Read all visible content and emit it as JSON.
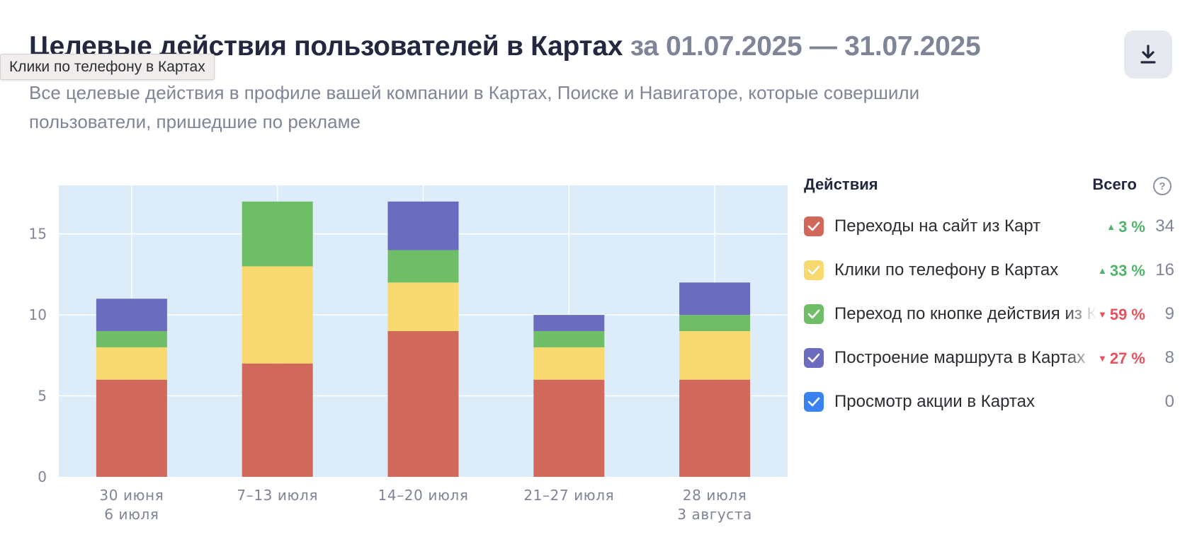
{
  "header": {
    "title": "Целевые действия пользователей в Картах",
    "period": "за 01.07.2025 — 31.07.2025",
    "subtitle": "Все целевые действия в профиле вашей компании в Картах, Поиске и Навигаторе, которые совершили пользователи, пришедшие по рекламе",
    "download_icon": "download-icon"
  },
  "tooltip": {
    "text": "Клики по телефону в Картах"
  },
  "legend": {
    "col_actions": "Действия",
    "col_total": "Всего",
    "help_icon": "?",
    "rows": [
      {
        "label": "Переходы на сайт из Карт",
        "color": "#d0695c",
        "change": "3 %",
        "direction": "up",
        "arrow": "▲",
        "total": "34"
      },
      {
        "label": "Клики по телефону в Картах",
        "color": "#f7d96f",
        "change": "33 %",
        "direction": "up",
        "arrow": "▲",
        "total": "16"
      },
      {
        "label": "Переход по кнопке действия из Карт",
        "color": "#70bd67",
        "change": "59 %",
        "direction": "down",
        "arrow": "▼",
        "total": "9"
      },
      {
        "label": "Построение маршрута в Картах",
        "color": "#6b6cbd",
        "change": "27 %",
        "direction": "down",
        "arrow": "▼",
        "total": "8"
      },
      {
        "label": "Просмотр акции в Картах",
        "color": "#3a82f0",
        "change": "",
        "direction": "",
        "arrow": "",
        "total": "0"
      }
    ]
  },
  "chart_data": {
    "type": "bar",
    "stacked": true,
    "categories": [
      [
        "30 июня",
        "6 июля"
      ],
      [
        "7–13 июля"
      ],
      [
        "14–20 июля"
      ],
      [
        "21–27 июля"
      ],
      [
        "28 июля",
        "3 августа"
      ]
    ],
    "series": [
      {
        "name": "Переходы на сайт из Карт",
        "color": "#d0695c",
        "values": [
          6,
          7,
          9,
          6,
          6
        ]
      },
      {
        "name": "Клики по телефону в Картах",
        "color": "#f7d96f",
        "values": [
          2,
          6,
          3,
          2,
          3
        ]
      },
      {
        "name": "Переход по кнопке действия из Карт",
        "color": "#70bd67",
        "values": [
          1,
          4,
          2,
          1,
          1
        ]
      },
      {
        "name": "Построение маршрута в Картах",
        "color": "#6b6cbd",
        "values": [
          2,
          0,
          3,
          1,
          2
        ]
      },
      {
        "name": "Просмотр акции в Картах",
        "color": "#3a82f0",
        "values": [
          0,
          0,
          0,
          0,
          0
        ]
      }
    ],
    "yticks": [
      0,
      5,
      10,
      15
    ],
    "ylim": [
      0,
      18
    ],
    "grid": true,
    "plot_background": "#dcedf9"
  }
}
